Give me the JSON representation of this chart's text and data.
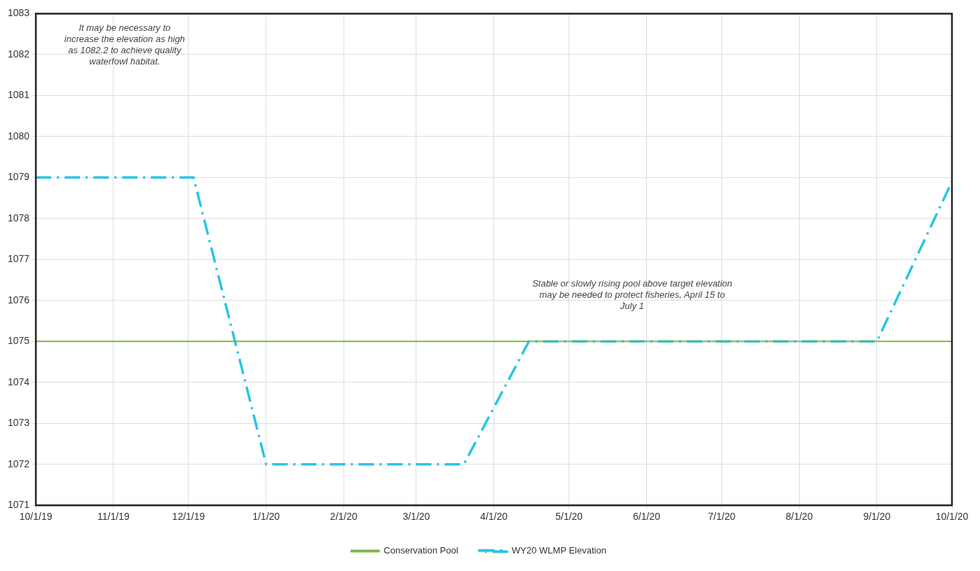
{
  "chart_data": {
    "type": "line",
    "x": [
      "2019-10-01",
      "2019-12-03",
      "2020-01-01",
      "2020-03-20",
      "2020-04-15",
      "2020-09-01",
      "2020-10-01"
    ],
    "series": [
      {
        "name": "Conservation Pool",
        "color": "#7ab648",
        "x": [
          "2019-10-01",
          "2020-10-01"
        ],
        "values": [
          1075,
          1075
        ],
        "line_style": "solid"
      },
      {
        "name": "WY20 WLMP Elevation",
        "color": "#29c5e6",
        "values": [
          1079,
          1079,
          1072,
          1072,
          1075,
          1075,
          1078.9
        ],
        "line_style": "dashed"
      }
    ],
    "xlim": [
      "2019-10-01",
      "2020-10-01"
    ],
    "xticks": [
      {
        "value": "2019-10-01",
        "label": "10/1/19"
      },
      {
        "value": "2019-11-01",
        "label": "11/1/19"
      },
      {
        "value": "2019-12-01",
        "label": "12/1/19"
      },
      {
        "value": "2020-01-01",
        "label": "1/1/20"
      },
      {
        "value": "2020-02-01",
        "label": "2/1/20"
      },
      {
        "value": "2020-03-01",
        "label": "3/1/20"
      },
      {
        "value": "2020-04-01",
        "label": "4/1/20"
      },
      {
        "value": "2020-05-01",
        "label": "5/1/20"
      },
      {
        "value": "2020-06-01",
        "label": "6/1/20"
      },
      {
        "value": "2020-07-01",
        "label": "7/1/20"
      },
      {
        "value": "2020-08-01",
        "label": "8/1/20"
      },
      {
        "value": "2020-09-01",
        "label": "9/1/20"
      },
      {
        "value": "2020-10-01",
        "label": "10/1/20"
      }
    ],
    "ylim": [
      1071,
      1083
    ],
    "yticks": [
      1071,
      1072,
      1073,
      1074,
      1075,
      1076,
      1077,
      1078,
      1079,
      1080,
      1081,
      1082,
      1083
    ],
    "annotations": [
      "It may be necessary to increase the elevation as high as 1082.2 to achieve quality waterfowl habitat.",
      "Stable or slowly rising pool above target elevation may be needed to protect fisheries, April 15 to July 1"
    ],
    "grid": true,
    "legend": "bottom",
    "marker": "none"
  }
}
